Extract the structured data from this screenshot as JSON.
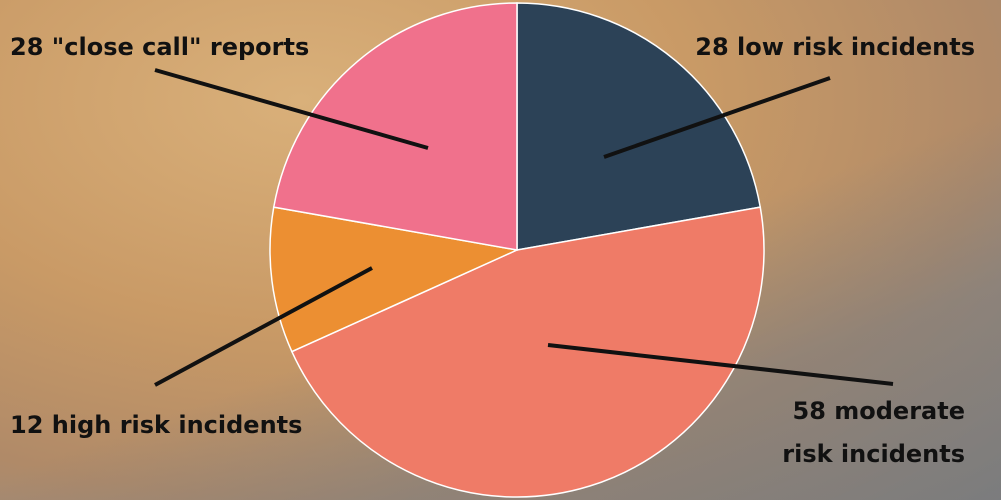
{
  "chart_data": {
    "type": "pie",
    "values": [
      28,
      58,
      12,
      28
    ],
    "value_labels": [
      "28 low risk incidents",
      "58 moderate risk incidents",
      "12 high risk incidents",
      "28 \"close call\" reports"
    ],
    "colors": [
      "#2c4257",
      "#ef7b67",
      "#ec8f32",
      "#f0718c"
    ]
  }
}
